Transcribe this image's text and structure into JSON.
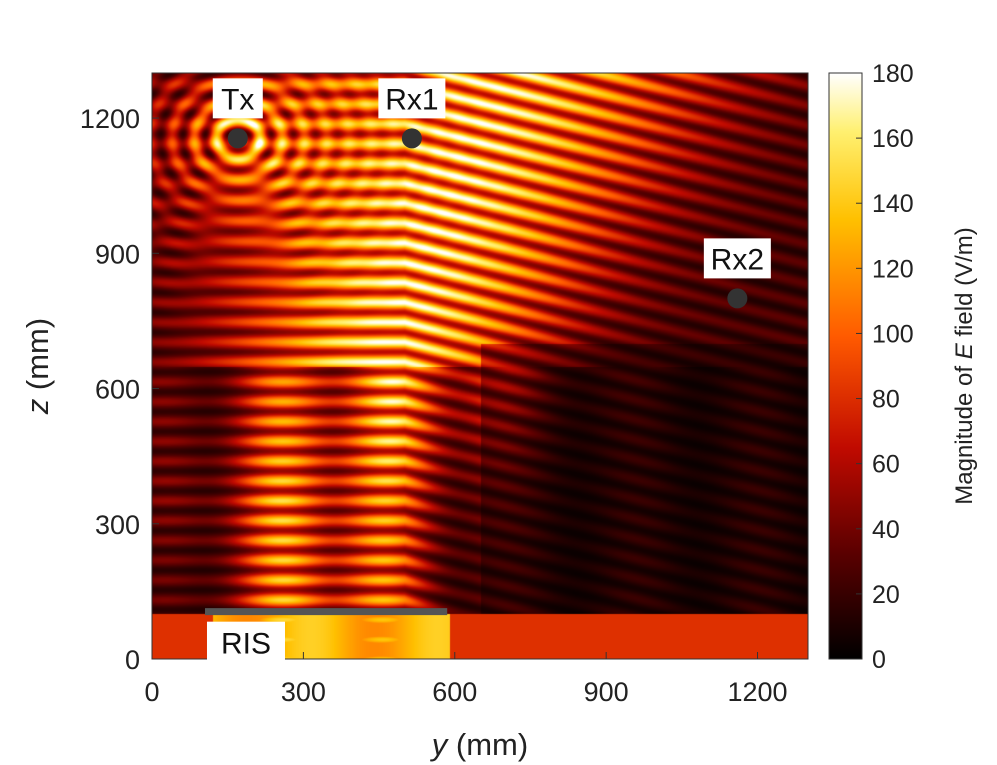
{
  "chart_data": {
    "type": "heatmap",
    "title": "",
    "xlabel_var": "y",
    "xlabel_unit": " (mm)",
    "ylabel_var": "z",
    "ylabel_unit": " (mm)",
    "xlim": [
      0,
      1300
    ],
    "ylim": [
      0,
      1300
    ],
    "xticks": [
      0,
      300,
      600,
      900,
      1200
    ],
    "yticks": [
      0,
      300,
      600,
      900,
      1200
    ],
    "colorbar": {
      "label_prefix": "Magnitude of ",
      "label_var": "E",
      "label_suffix": " field (V/m)",
      "range": [
        0,
        180
      ],
      "ticks": [
        0,
        20,
        40,
        60,
        80,
        100,
        120,
        140,
        160,
        180
      ]
    },
    "markers": [
      {
        "name": "Tx",
        "y": 170,
        "z": 1155
      },
      {
        "name": "Rx1",
        "y": 515,
        "z": 1155
      },
      {
        "name": "Rx2",
        "y": 1160,
        "z": 800
      }
    ],
    "ris": {
      "label": "RIS",
      "y_start": 105,
      "y_end": 585,
      "z": 105
    },
    "colors": {
      "marker": "#333333",
      "ris_bar": "#555555",
      "colormap": [
        "#000000",
        "#8a0000",
        "#e01a00",
        "#ff7a00",
        "#ffd21a",
        "#ffffff"
      ]
    }
  }
}
